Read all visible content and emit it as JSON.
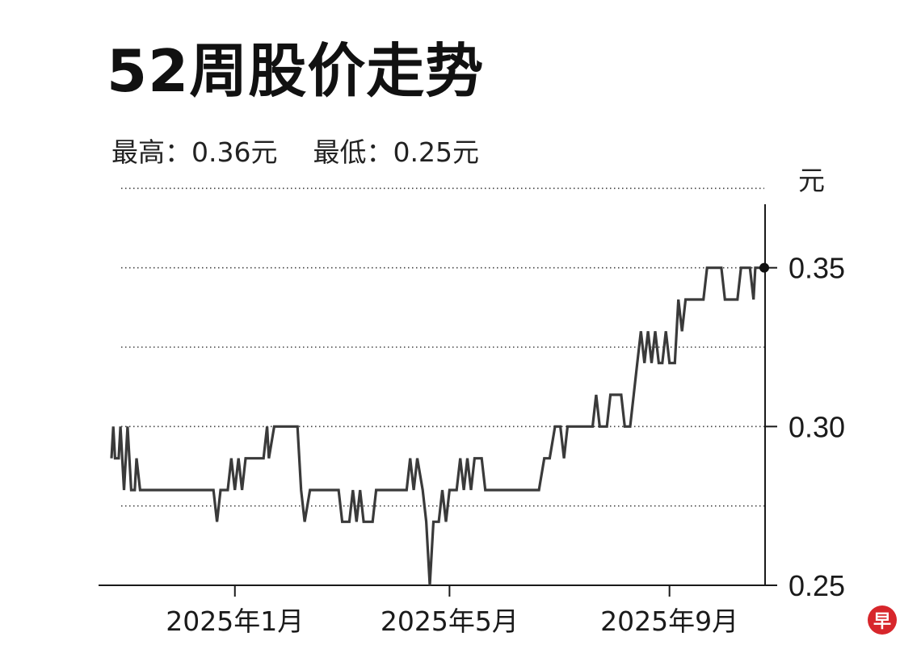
{
  "title": "52周股价走势",
  "stats": {
    "high": "最高：0.36元",
    "low": "最低：0.25元"
  },
  "logo_text": "早",
  "colors": {
    "line": "#3a3a3a",
    "axis": "#1a1a1a",
    "grid": "#444444",
    "logo": "#d7262b"
  },
  "chart_data": {
    "type": "line",
    "title": "52周股价走势",
    "ylabel": "元",
    "xlabel": "",
    "ylim": [
      0.25,
      0.37
    ],
    "y_ticks": [
      "0.25",
      "0.30",
      "0.35"
    ],
    "y_gridlines": [
      0.275,
      0.3,
      0.325,
      0.35,
      0.375
    ],
    "grid": "horizontal-dotted",
    "x_ticks": [
      "2025年1月",
      "2025年5月",
      "2025年9月"
    ],
    "x_tick_dates": [
      "2025-01-01",
      "2025-05-01",
      "2025-09-01"
    ],
    "x_range": [
      "2024-10-24",
      "2025-10-24"
    ],
    "end_marker": {
      "date": "2025-10-24",
      "value": 0.35
    },
    "series": [
      {
        "values": [
          [
            "2024-10-24",
            0.29
          ],
          [
            "2024-10-25",
            0.3
          ],
          [
            "2024-10-26",
            0.29
          ],
          [
            "2024-10-28",
            0.29
          ],
          [
            "2024-10-29",
            0.3
          ],
          [
            "2024-10-31",
            0.28
          ],
          [
            "2024-11-02",
            0.3
          ],
          [
            "2024-11-04",
            0.28
          ],
          [
            "2024-11-06",
            0.28
          ],
          [
            "2024-11-07",
            0.29
          ],
          [
            "2024-11-09",
            0.28
          ],
          [
            "2024-12-20",
            0.28
          ],
          [
            "2024-12-22",
            0.27
          ],
          [
            "2024-12-24",
            0.28
          ],
          [
            "2024-12-28",
            0.28
          ],
          [
            "2024-12-30",
            0.29
          ],
          [
            "2025-01-01",
            0.28
          ],
          [
            "2025-01-03",
            0.29
          ],
          [
            "2025-01-05",
            0.28
          ],
          [
            "2025-01-07",
            0.29
          ],
          [
            "2025-01-17",
            0.29
          ],
          [
            "2025-01-19",
            0.3
          ],
          [
            "2025-01-20",
            0.29
          ],
          [
            "2025-01-23",
            0.3
          ],
          [
            "2025-02-05",
            0.3
          ],
          [
            "2025-02-07",
            0.28
          ],
          [
            "2025-02-09",
            0.27
          ],
          [
            "2025-02-12",
            0.28
          ],
          [
            "2025-02-28",
            0.28
          ],
          [
            "2025-03-02",
            0.27
          ],
          [
            "2025-03-06",
            0.27
          ],
          [
            "2025-03-08",
            0.28
          ],
          [
            "2025-03-10",
            0.27
          ],
          [
            "2025-03-12",
            0.28
          ],
          [
            "2025-03-14",
            0.27
          ],
          [
            "2025-03-19",
            0.27
          ],
          [
            "2025-03-21",
            0.28
          ],
          [
            "2025-04-07",
            0.28
          ],
          [
            "2025-04-09",
            0.29
          ],
          [
            "2025-04-11",
            0.28
          ],
          [
            "2025-04-13",
            0.29
          ],
          [
            "2025-04-16",
            0.28
          ],
          [
            "2025-04-18",
            0.27
          ],
          [
            "2025-04-20",
            0.25
          ],
          [
            "2025-04-22",
            0.27
          ],
          [
            "2025-04-25",
            0.27
          ],
          [
            "2025-04-27",
            0.28
          ],
          [
            "2025-04-29",
            0.27
          ],
          [
            "2025-05-01",
            0.28
          ],
          [
            "2025-05-05",
            0.28
          ],
          [
            "2025-05-07",
            0.29
          ],
          [
            "2025-05-09",
            0.28
          ],
          [
            "2025-05-11",
            0.29
          ],
          [
            "2025-05-13",
            0.28
          ],
          [
            "2025-05-15",
            0.29
          ],
          [
            "2025-05-19",
            0.29
          ],
          [
            "2025-05-21",
            0.28
          ],
          [
            "2025-06-20",
            0.28
          ],
          [
            "2025-06-23",
            0.29
          ],
          [
            "2025-06-26",
            0.29
          ],
          [
            "2025-06-29",
            0.3
          ],
          [
            "2025-07-02",
            0.3
          ],
          [
            "2025-07-04",
            0.29
          ],
          [
            "2025-07-06",
            0.3
          ],
          [
            "2025-07-20",
            0.3
          ],
          [
            "2025-07-22",
            0.31
          ],
          [
            "2025-07-24",
            0.3
          ],
          [
            "2025-07-28",
            0.3
          ],
          [
            "2025-07-30",
            0.31
          ],
          [
            "2025-08-05",
            0.31
          ],
          [
            "2025-08-07",
            0.3
          ],
          [
            "2025-08-10",
            0.3
          ],
          [
            "2025-08-12",
            0.31
          ],
          [
            "2025-08-14",
            0.32
          ],
          [
            "2025-08-16",
            0.33
          ],
          [
            "2025-08-18",
            0.32
          ],
          [
            "2025-08-20",
            0.33
          ],
          [
            "2025-08-22",
            0.32
          ],
          [
            "2025-08-24",
            0.33
          ],
          [
            "2025-08-26",
            0.32
          ],
          [
            "2025-08-28",
            0.32
          ],
          [
            "2025-08-30",
            0.33
          ],
          [
            "2025-09-01",
            0.32
          ],
          [
            "2025-09-04",
            0.32
          ],
          [
            "2025-09-06",
            0.34
          ],
          [
            "2025-09-08",
            0.33
          ],
          [
            "2025-09-10",
            0.34
          ],
          [
            "2025-09-17",
            0.34
          ],
          [
            "2025-09-20",
            0.34
          ],
          [
            "2025-09-22",
            0.35
          ],
          [
            "2025-09-30",
            0.35
          ],
          [
            "2025-10-02",
            0.34
          ],
          [
            "2025-10-09",
            0.34
          ],
          [
            "2025-10-11",
            0.35
          ],
          [
            "2025-10-16",
            0.35
          ],
          [
            "2025-10-18",
            0.34
          ],
          [
            "2025-10-19",
            0.35
          ],
          [
            "2025-10-24",
            0.35
          ]
        ]
      }
    ]
  }
}
